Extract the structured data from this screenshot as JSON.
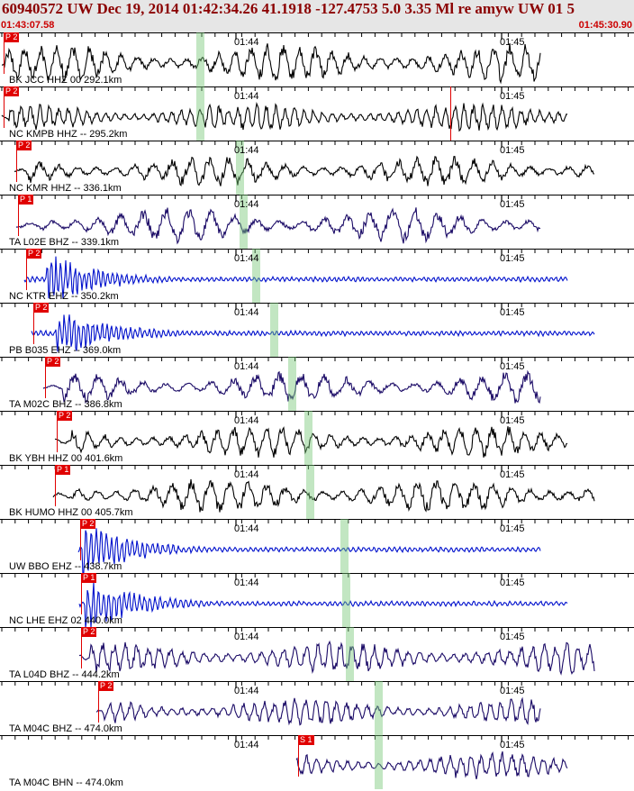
{
  "header": {
    "title": "60940572 UW Dec 19, 2014 01:42:34.26   41.1918 -127.4753  5.0 3.35 Ml re amyw UW 01   5",
    "start_time": "01:43:07.58",
    "end_time": "01:45:30.90"
  },
  "minute_ticks": [
    "01:44",
    "01:45"
  ],
  "traces": [
    {
      "label": "BK JCC HHZ 00 292.1km",
      "pick": "P 2",
      "pick_x": 4,
      "marker_x": 218,
      "color": "#000000",
      "amp": 22,
      "freq": 0.35,
      "onset": 5
    },
    {
      "label": "NC KMPB HHZ -- 295.2km",
      "pick": "P 2",
      "pick_x": 4,
      "marker_x": 218,
      "color": "#000000",
      "amp": 16,
      "freq": 0.6,
      "onset": 10,
      "s_pick": "S",
      "s_pick_x": 500
    },
    {
      "label": "NC KMR HHZ -- 336.1km",
      "pick": "P 2",
      "pick_x": 18,
      "marker_x": 262,
      "color": "#000000",
      "amp": 18,
      "freq": 0.3,
      "onset": 30
    },
    {
      "label": "TA L02E BHZ -- 339.1km",
      "pick": "P 1",
      "pick_x": 20,
      "marker_x": 266,
      "color": "#1a0a66",
      "amp": 20,
      "freq": 0.25,
      "onset": 45
    },
    {
      "label": "NC KTR EHZ -- 350.2km",
      "pick": "P 2",
      "pick_x": 29,
      "marker_x": 280,
      "color": "#0010cc",
      "amp": 22,
      "freq": 1.2,
      "onset": 52,
      "decay": true
    },
    {
      "label": "PB B035 EHZ -- 369.0km",
      "pick": "P 2",
      "pick_x": 37,
      "marker_x": 300,
      "color": "#0010cc",
      "amp": 22,
      "freq": 1.2,
      "onset": 62,
      "decay": true
    },
    {
      "label": "TA M02C BHZ -- 386.8km",
      "pick": "P 2",
      "pick_x": 50,
      "marker_x": 320,
      "color": "#1a0a66",
      "amp": 18,
      "freq": 0.25,
      "onset": 70
    },
    {
      "label": "BK YBH HHZ 00 401.6km",
      "pick": "P 2",
      "pick_x": 63,
      "marker_x": 338,
      "color": "#000000",
      "amp": 18,
      "freq": 0.35,
      "onset": 80
    },
    {
      "label": "BK HUMO HHZ 00 405.7km",
      "pick": "P 1",
      "pick_x": 61,
      "marker_x": 340,
      "color": "#000000",
      "amp": 20,
      "freq": 0.3,
      "onset": 80
    },
    {
      "label": "UW BBO EHZ -- 438.7km",
      "pick": "P 2",
      "pick_x": 89,
      "marker_x": 378,
      "color": "#0010cc",
      "amp": 22,
      "freq": 1.1,
      "onset": 92,
      "decay": true
    },
    {
      "label": "NC LHE EHZ 02 440.0km",
      "pick": "P 1",
      "pick_x": 90,
      "marker_x": 380,
      "color": "#0010cc",
      "amp": 22,
      "freq": 1.1,
      "onset": 95,
      "decay": true
    },
    {
      "label": "TA L04D BHZ -- 444.2km",
      "pick": "P 2",
      "pick_x": 90,
      "marker_x": 384,
      "color": "#1a0a66",
      "amp": 18,
      "freq": 0.5,
      "onset": 100
    },
    {
      "label": "TA M04C BHZ -- 474.0km",
      "pick": "P 2",
      "pick_x": 109,
      "marker_x": 416,
      "color": "#1a0a66",
      "amp": 16,
      "freq": 0.55,
      "onset": 115
    },
    {
      "label": "TA M04C BHN -- 474.0km",
      "pick": "S 1",
      "pick_x": 331,
      "marker_x": 416,
      "color": "#1a0a66",
      "amp": 16,
      "freq": 0.55,
      "onset": 110
    }
  ]
}
